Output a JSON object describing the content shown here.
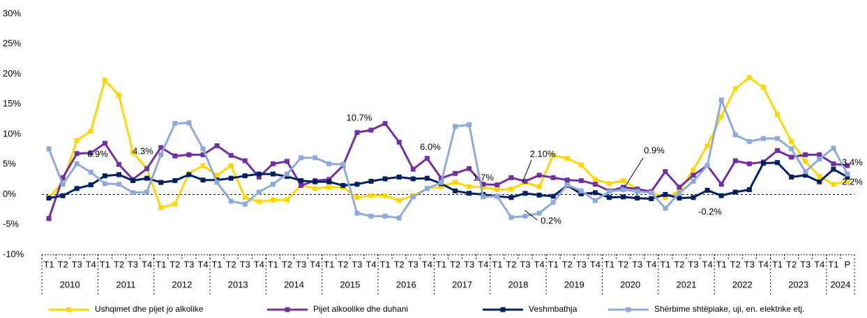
{
  "chart_data": {
    "type": "line",
    "categories": [
      "T1",
      "T2",
      "T3",
      "T4",
      "T1",
      "T2",
      "T3",
      "T4",
      "T1",
      "T2",
      "T3",
      "T4",
      "T1",
      "T2",
      "T3",
      "T4",
      "T1",
      "T2",
      "T3",
      "T4",
      "T1",
      "T2",
      "T3",
      "T4",
      "T1",
      "T2",
      "T3",
      "T4",
      "T1",
      "T2",
      "T3",
      "T4",
      "T1",
      "T2",
      "T3",
      "T4",
      "T1",
      "T2",
      "T3",
      "T4",
      "T1",
      "T2",
      "T3",
      "T4",
      "T1",
      "T2",
      "T3",
      "T4",
      "T1",
      "T2",
      "T3",
      "T4",
      "T1",
      "T2",
      "T3",
      "T4",
      "T1",
      "P"
    ],
    "year_labels": [
      "2010",
      "2011",
      "2012",
      "2013",
      "2014",
      "2015",
      "2016",
      "2017",
      "2018",
      "2019",
      "2020",
      "2021",
      "2022",
      "2023",
      "2024"
    ],
    "ylim": [
      -10,
      30
    ],
    "yticks": [
      {
        "value": -10,
        "label": "-10%"
      },
      {
        "value": -5,
        "label": "-5%"
      },
      {
        "value": 0,
        "label": "0%"
      },
      {
        "value": 5,
        "label": "5%"
      },
      {
        "value": 10,
        "label": "10%"
      },
      {
        "value": 15,
        "label": "15%"
      },
      {
        "value": 20,
        "label": "20%"
      },
      {
        "value": 25,
        "label": "25%"
      },
      {
        "value": 30,
        "label": "30%"
      }
    ],
    "series": [
      {
        "name": "Ushqimet dhe pijet jo alkolike",
        "color": "#ffd700",
        "values": [
          -0.5,
          2,
          9,
          10.5,
          19,
          16.5,
          7,
          4.3,
          -2.2,
          -1.6,
          3.5,
          4.8,
          3.2,
          4.8,
          -0.5,
          -1.2,
          -0.9,
          -0.9,
          1.5,
          1,
          1.2,
          1.2,
          -0.5,
          -0.2,
          -0.2,
          -1,
          -0.2,
          1,
          1.3,
          2,
          1.3,
          1.2,
          0.8,
          0.9,
          2,
          1.3,
          6.5,
          6,
          4.9,
          2.5,
          1.8,
          2.3,
          0.9,
          0.3,
          -0.5,
          0.5,
          4.1,
          8.1,
          13,
          17.6,
          19.4,
          17.8,
          13.3,
          8.8,
          5.5,
          3,
          1.7,
          2.2
        ]
      },
      {
        "name": "Pijet alkoolike dhe duhani",
        "color": "#7030a0",
        "values": [
          -4,
          2.8,
          6.8,
          6.9,
          8.5,
          5,
          2.5,
          4.3,
          7.8,
          6.4,
          6.6,
          6.6,
          8.1,
          6.5,
          5.6,
          2.9,
          5.1,
          5.5,
          1.5,
          2.3,
          2.5,
          4.8,
          10.3,
          10.7,
          11.8,
          8.7,
          4.2,
          6,
          2.7,
          3.5,
          4.3,
          1.7,
          1.6,
          2.8,
          2.2,
          3.2,
          2.8,
          2.4,
          2.3,
          1.7,
          0.6,
          1.2,
          0.9,
          0.5,
          3.8,
          1.2,
          3.2,
          4.8,
          1.7,
          5.6,
          5.1,
          5.4,
          7.3,
          6.2,
          6.6,
          6.6,
          5.1,
          4.8
        ]
      },
      {
        "name": "Veshmbathja",
        "color": "#002060",
        "values": [
          -0.6,
          -0.2,
          1,
          1.6,
          3.1,
          3.3,
          2.3,
          2.7,
          2,
          2.3,
          3.3,
          2.4,
          2.4,
          2.7,
          3.1,
          3.4,
          3.4,
          3,
          2.3,
          2.1,
          2.1,
          1.5,
          1.7,
          2.2,
          2.6,
          2.9,
          2.6,
          2.7,
          1.8,
          0.6,
          0.2,
          0,
          -0.3,
          -0.5,
          0.2,
          -0.1,
          -0.3,
          1.5,
          0.1,
          0.3,
          -0.5,
          -0.4,
          -0.6,
          -0.7,
          0,
          -0.6,
          -0.5,
          0.7,
          -0.2,
          0.4,
          0.8,
          5.2,
          5.3,
          2.9,
          3.2,
          2.1,
          4.2,
          2.9
        ]
      },
      {
        "name": "Shërbime shtëpiake, uji, en. elektrike etj.",
        "color": "#8eaadb",
        "values": [
          7.6,
          1.7,
          5.1,
          3.7,
          1.8,
          1.7,
          0.3,
          0.4,
          6.6,
          11.8,
          11.9,
          7.6,
          2,
          -1.1,
          -1.6,
          0.4,
          1.7,
          3.4,
          6.1,
          6.1,
          5.1,
          5,
          -3.1,
          -3.6,
          -3.6,
          -3.9,
          -0.4,
          1,
          2,
          11.3,
          11.6,
          -0.4,
          -0.3,
          -3.8,
          -3.6,
          -3.1,
          -1.3,
          1.6,
          0.6,
          -1,
          0.5,
          0.8,
          0.5,
          0.3,
          -2.3,
          0.2,
          2.2,
          4.8,
          15.7,
          9.9,
          8.8,
          9.3,
          9.3,
          7.6,
          3.8,
          5.9,
          7.7,
          3.4
        ]
      }
    ],
    "annotations": [
      "6.9%",
      "4.3%",
      "10.7%",
      "6.0%",
      "1.7%",
      "2.10%",
      "0.2%",
      "0.9%",
      "-0.2%",
      "3.4%",
      "2.2%"
    ]
  }
}
